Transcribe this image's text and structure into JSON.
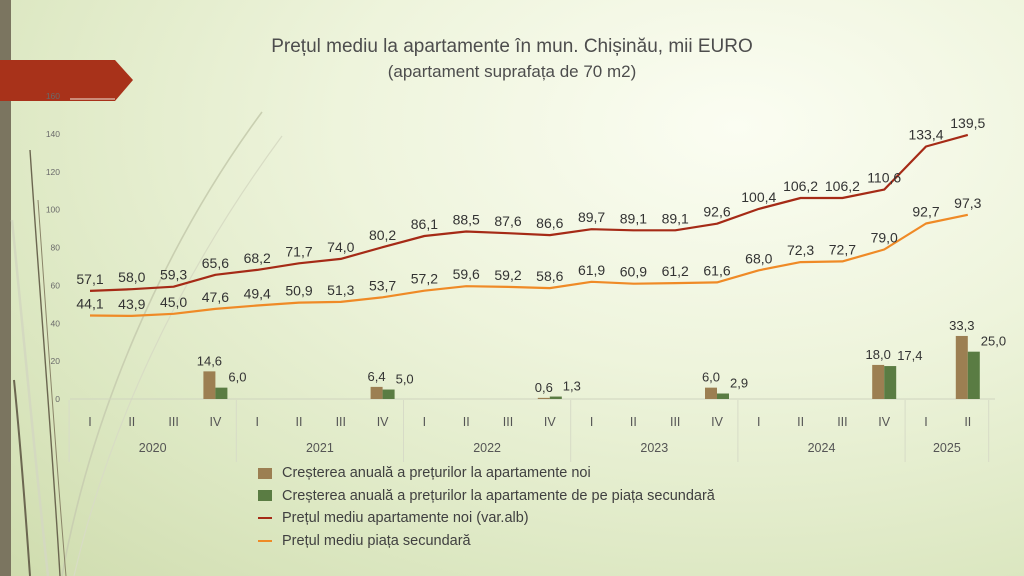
{
  "title": "Prețul mediu la apartamente în mun. Chișinău, mii EURO",
  "subtitle": "(apartament suprafața de 70 m2)",
  "colors": {
    "new_line": "#a52a16",
    "secondary_line": "#ef8a26",
    "growth_new_bar": "#9c7f52",
    "growth_secondary_bar": "#5a7c43",
    "accent_arrow": "#a8321a"
  },
  "legend": {
    "growth_new": "Creșterea anuală a prețurilor la apartamente noi",
    "growth_secondary": "Creșterea anuală a prețurilor la apartamente de pe piața secundară",
    "price_new": "Prețul mediu apartamente noi (var.alb)",
    "price_secondary": "Prețul mediu piața secundară"
  },
  "chart_data": {
    "type": "bar",
    "quarters": [
      "I",
      "II",
      "III",
      "IV",
      "I",
      "II",
      "III",
      "IV",
      "I",
      "II",
      "III",
      "IV",
      "I",
      "II",
      "III",
      "IV",
      "I",
      "II",
      "III",
      "IV",
      "I",
      "II"
    ],
    "years": [
      "2020",
      "2021",
      "2022",
      "2023",
      "2024",
      "2025"
    ],
    "ylim": [
      0,
      160
    ],
    "yticks": [
      0,
      20,
      40,
      60,
      80,
      100,
      120,
      140
    ],
    "ytick_top_label": "160",
    "series": [
      {
        "name": "Prețul mediu apartamente noi (var.alb)",
        "kind": "line",
        "values": [
          57.1,
          58.0,
          59.3,
          65.6,
          68.2,
          71.7,
          74.0,
          80.2,
          86.1,
          88.5,
          87.6,
          86.6,
          89.7,
          89.1,
          89.1,
          92.6,
          100.4,
          106.2,
          106.2,
          110.6,
          133.4,
          139.5
        ],
        "labels": [
          "57,1",
          "58,0",
          "59,3",
          "65,6",
          "68,2",
          "71,7",
          "74,0",
          "80,2",
          "86,1",
          "88,5",
          "87,6",
          "86,6",
          "89,7",
          "89,1",
          "89,1",
          "92,6",
          "100,4",
          "106,2",
          "106,2",
          "110,6",
          "133,4",
          "139,5"
        ]
      },
      {
        "name": "Prețul mediu piața secundară",
        "kind": "line",
        "values": [
          44.1,
          43.9,
          45.0,
          47.6,
          49.4,
          50.9,
          51.3,
          53.7,
          57.2,
          59.6,
          59.2,
          58.6,
          61.9,
          60.9,
          61.2,
          61.6,
          68.0,
          72.3,
          72.7,
          79.0,
          92.7,
          97.3
        ],
        "labels": [
          "44,1",
          "43,9",
          "45,0",
          "47,6",
          "49,4",
          "50,9",
          "51,3",
          "53,7",
          "57,2",
          "59,6",
          "59,2",
          "58,6",
          "61,9",
          "60,9",
          "61,2",
          "61,6",
          "68,0",
          "72,3",
          "72,7",
          "79,0",
          "92,7",
          "97,3"
        ]
      },
      {
        "name": "Creșterea anuală a prețurilor la apartamente noi",
        "kind": "bar",
        "values": [
          null,
          null,
          null,
          14.6,
          null,
          null,
          null,
          6.4,
          null,
          null,
          null,
          0.6,
          null,
          null,
          null,
          6.0,
          null,
          null,
          null,
          18.0,
          null,
          33.3
        ],
        "labels": [
          "",
          "",
          "",
          "14,6",
          "",
          "",
          "",
          "6,4",
          "",
          "",
          "",
          "0,6",
          "",
          "",
          "",
          "6,0",
          "",
          "",
          "",
          "18,0",
          "",
          "33,3"
        ]
      },
      {
        "name": "Creșterea anuală a prețurilor la apartamente de pe piața secundară",
        "kind": "bar",
        "values": [
          null,
          null,
          null,
          6.0,
          null,
          null,
          null,
          5.0,
          null,
          null,
          null,
          1.3,
          null,
          null,
          null,
          2.9,
          null,
          null,
          null,
          17.4,
          null,
          25.0
        ],
        "labels": [
          "",
          "",
          "",
          "6,0",
          "",
          "",
          "",
          "5,0",
          "",
          "",
          "",
          "1,3",
          "",
          "",
          "",
          "2,9",
          "",
          "",
          "",
          "17,4",
          "",
          "25,0"
        ]
      }
    ]
  }
}
